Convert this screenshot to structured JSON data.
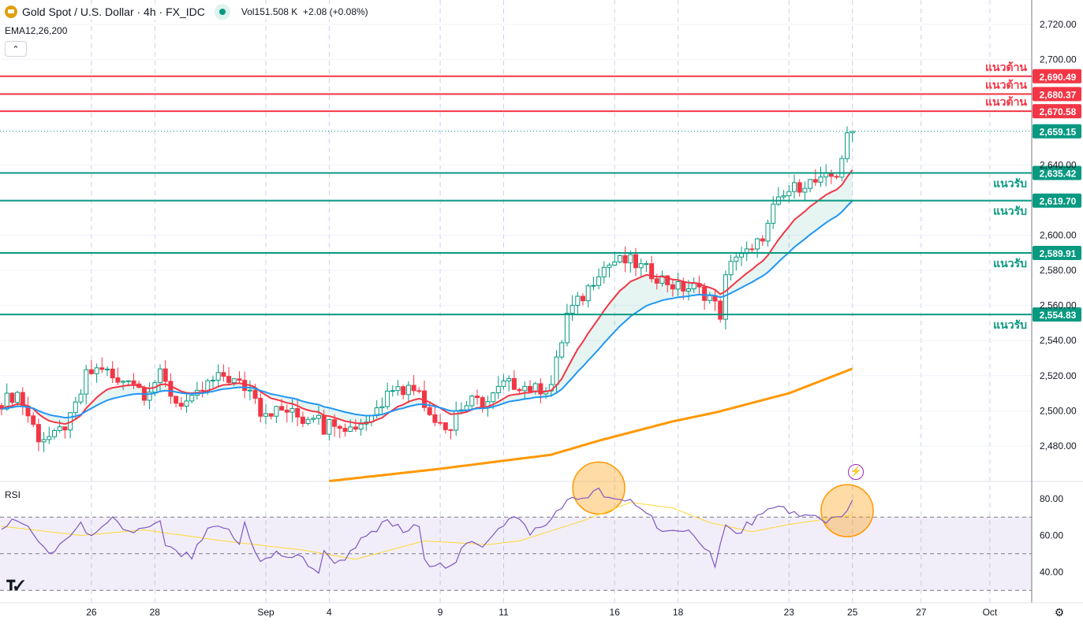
{
  "header": {
    "symbol": "Gold Spot / U.S. Dollar · 4h · FX_IDC",
    "volume_label": "Vol",
    "volume": "151.508 K",
    "change": "+2.08 (+0.08%)",
    "indicator": "EMA12,26,200",
    "collapse_icon": "chevron-up-icon"
  },
  "rsi_label": "RSI",
  "logo": "TV",
  "colors": {
    "up": "#089981",
    "down": "#f23645",
    "ema12": "#f23645",
    "ema26": "#2196f3",
    "ema200": "#ff9800",
    "rsi": "#7e57c2",
    "rsi_ma": "#fdd835",
    "resistance": "#f23645",
    "support": "#089981"
  },
  "levels": [
    {
      "price": 2690.49,
      "label": "2,690.49",
      "name": "แนวต้าน",
      "type": "resistance"
    },
    {
      "price": 2680.37,
      "label": "2,680.37",
      "name": "แนวต้าน",
      "type": "resistance"
    },
    {
      "price": 2670.58,
      "label": "2,670.58",
      "name": "แนวต้าน",
      "type": "resistance"
    },
    {
      "price": 2635.42,
      "label": "2,635.42",
      "name": "แนวรับ",
      "type": "support"
    },
    {
      "price": 2619.7,
      "label": "2,619.70",
      "name": "แนวรับ",
      "type": "support"
    },
    {
      "price": 2589.91,
      "label": "2,589.91",
      "name": "แนวรับ",
      "type": "support"
    },
    {
      "price": 2554.83,
      "label": "2,554.83",
      "name": "แนวรับ",
      "type": "support"
    }
  ],
  "last_price": {
    "price": 2659.15,
    "label": "2,659.15"
  },
  "chart_data": {
    "type": "candlestick",
    "title": "Gold Spot / U.S. Dollar · 4h · FX_IDC",
    "ylim": [
      2460,
      2730
    ],
    "price_ticks": [
      {
        "v": 2720,
        "t": "2,720.00"
      },
      {
        "v": 2700,
        "t": "2,700.00"
      },
      {
        "v": 2640,
        "t": "2,640.00"
      },
      {
        "v": 2600,
        "t": "2,600.00"
      },
      {
        "v": 2580,
        "t": "2,580.00"
      },
      {
        "v": 2560,
        "t": "2,560.00"
      },
      {
        "v": 2540,
        "t": "2,540.00"
      },
      {
        "v": 2520,
        "t": "2,520.00"
      },
      {
        "v": 2500,
        "t": "2,500.00"
      },
      {
        "v": 2480,
        "t": "2,480.00"
      }
    ],
    "x_ticks": [
      {
        "i": 17,
        "t": "26"
      },
      {
        "i": 29,
        "t": "28"
      },
      {
        "i": 50,
        "t": "Sep"
      },
      {
        "i": 62,
        "t": "4"
      },
      {
        "i": 83,
        "t": "9"
      },
      {
        "i": 95,
        "t": "11"
      },
      {
        "i": 116,
        "t": "16"
      },
      {
        "i": 128,
        "t": "18"
      },
      {
        "i": 149,
        "t": "23"
      },
      {
        "i": 161,
        "t": "25"
      },
      {
        "i": 174,
        "t": "27"
      },
      {
        "i": 187,
        "t": "Oct"
      }
    ],
    "close_keypoints": [
      [
        0,
        2505
      ],
      [
        3,
        2510
      ],
      [
        7,
        2485
      ],
      [
        10,
        2485
      ],
      [
        13,
        2495
      ],
      [
        15,
        2510
      ],
      [
        16,
        2520
      ],
      [
        19,
        2525
      ],
      [
        22,
        2515
      ],
      [
        24,
        2520
      ],
      [
        27,
        2510
      ],
      [
        30,
        2520
      ],
      [
        31,
        2515
      ],
      [
        33,
        2505
      ],
      [
        36,
        2505
      ],
      [
        39,
        2515
      ],
      [
        42,
        2520
      ],
      [
        45,
        2515
      ],
      [
        48,
        2510
      ],
      [
        49,
        2500
      ],
      [
        51,
        2500
      ],
      [
        54,
        2500
      ],
      [
        57,
        2495
      ],
      [
        60,
        2500
      ],
      [
        61,
        2490
      ],
      [
        63,
        2495
      ],
      [
        66,
        2490
      ],
      [
        69,
        2495
      ],
      [
        72,
        2505
      ],
      [
        73,
        2515
      ],
      [
        76,
        2512
      ],
      [
        79,
        2515
      ],
      [
        80,
        2500
      ],
      [
        83,
        2495
      ],
      [
        85,
        2490
      ],
      [
        86,
        2500
      ],
      [
        89,
        2505
      ],
      [
        92,
        2505
      ],
      [
        95,
        2515
      ],
      [
        98,
        2515
      ],
      [
        101,
        2512
      ],
      [
        104,
        2515
      ],
      [
        106,
        2540
      ],
      [
        107,
        2555
      ],
      [
        110,
        2565
      ],
      [
        113,
        2580
      ],
      [
        116,
        2585
      ],
      [
        119,
        2585
      ],
      [
        122,
        2580
      ],
      [
        125,
        2575
      ],
      [
        128,
        2570
      ],
      [
        131,
        2570
      ],
      [
        134,
        2565
      ],
      [
        136,
        2555
      ],
      [
        137,
        2575
      ],
      [
        139,
        2590
      ],
      [
        142,
        2590
      ],
      [
        143,
        2595
      ],
      [
        145,
        2605
      ],
      [
        146,
        2615
      ],
      [
        149,
        2625
      ],
      [
        152,
        2630
      ],
      [
        155,
        2630
      ],
      [
        158,
        2635
      ],
      [
        160,
        2655
      ],
      [
        161,
        2659.15
      ]
    ],
    "ema200_keypoints": [
      [
        62,
        2460
      ],
      [
        83,
        2467
      ],
      [
        104,
        2475
      ],
      [
        113,
        2483
      ],
      [
        127,
        2494
      ],
      [
        135,
        2499
      ],
      [
        149,
        2510
      ],
      [
        161,
        2524
      ]
    ],
    "rsi": {
      "ylim": [
        20,
        90
      ],
      "levels": [
        70,
        50,
        30
      ],
      "ticks": [
        {
          "v": 80,
          "t": "80.00"
        },
        {
          "v": 60,
          "t": "60.00"
        },
        {
          "v": 40,
          "t": "40.00"
        }
      ],
      "keypoints": [
        [
          0,
          65
        ],
        [
          3,
          68
        ],
        [
          6,
          62
        ],
        [
          9,
          48
        ],
        [
          12,
          58
        ],
        [
          15,
          65
        ],
        [
          18,
          60
        ],
        [
          21,
          68
        ],
        [
          24,
          62
        ],
        [
          27,
          63
        ],
        [
          30,
          66
        ],
        [
          31,
          55
        ],
        [
          33,
          50
        ],
        [
          36,
          48
        ],
        [
          39,
          62
        ],
        [
          42,
          65
        ],
        [
          45,
          55
        ],
        [
          46,
          67
        ],
        [
          48,
          52
        ],
        [
          49,
          45
        ],
        [
          52,
          50
        ],
        [
          57,
          47
        ],
        [
          60,
          40
        ],
        [
          61,
          50
        ],
        [
          64,
          45
        ],
        [
          67,
          55
        ],
        [
          70,
          60
        ],
        [
          73,
          68
        ],
        [
          76,
          62
        ],
        [
          79,
          65
        ],
        [
          80,
          45
        ],
        [
          83,
          46
        ],
        [
          85,
          42
        ],
        [
          88,
          55
        ],
        [
          91,
          55
        ],
        [
          94,
          65
        ],
        [
          97,
          70
        ],
        [
          100,
          62
        ],
        [
          103,
          65
        ],
        [
          106,
          77
        ],
        [
          109,
          80
        ],
        [
          113,
          84
        ],
        [
          116,
          78
        ],
        [
          119,
          79
        ],
        [
          122,
          73
        ],
        [
          125,
          63
        ],
        [
          128,
          60
        ],
        [
          131,
          62
        ],
        [
          134,
          50
        ],
        [
          135,
          45
        ],
        [
          137,
          65
        ],
        [
          139,
          60
        ],
        [
          142,
          68
        ],
        [
          145,
          72
        ],
        [
          148,
          76
        ],
        [
          149,
          74
        ],
        [
          151,
          70
        ],
        [
          154,
          70
        ],
        [
          156,
          68
        ],
        [
          159,
          72
        ],
        [
          161,
          77
        ]
      ],
      "ma_keypoints": [
        [
          0,
          65
        ],
        [
          15,
          60
        ],
        [
          27,
          63
        ],
        [
          42,
          57
        ],
        [
          57,
          52
        ],
        [
          67,
          47
        ],
        [
          80,
          57
        ],
        [
          92,
          55
        ],
        [
          98,
          57
        ],
        [
          110,
          68
        ],
        [
          119,
          78
        ],
        [
          127,
          75
        ],
        [
          134,
          67
        ],
        [
          142,
          62
        ],
        [
          149,
          66
        ],
        [
          161,
          71
        ]
      ],
      "highlights": [
        113,
        160
      ]
    }
  }
}
